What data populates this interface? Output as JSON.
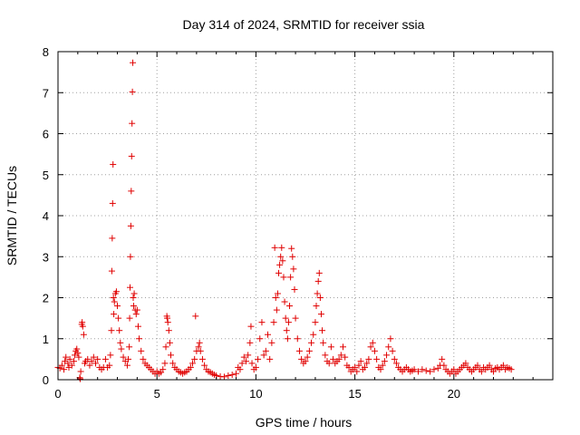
{
  "chart_data": {
    "type": "scatter",
    "title": "Day 314 of 2024, SRMTID for receiver ssia",
    "xlabel": "GPS time / hours",
    "ylabel": "SRMTID / TECUs",
    "xlim": [
      0,
      25
    ],
    "ylim": [
      0,
      8
    ],
    "xticks": [
      0,
      5,
      10,
      15,
      20
    ],
    "yticks": [
      0,
      1,
      2,
      3,
      4,
      5,
      6,
      7,
      8
    ],
    "grid": true,
    "marker": "plus",
    "color": "#e00000",
    "points": [
      [
        0.0,
        0.3
      ],
      [
        0.1,
        0.28
      ],
      [
        0.2,
        0.35
      ],
      [
        0.3,
        0.25
      ],
      [
        0.35,
        0.45
      ],
      [
        0.4,
        0.55
      ],
      [
        0.5,
        0.4
      ],
      [
        0.55,
        0.3
      ],
      [
        0.6,
        0.5
      ],
      [
        0.7,
        0.35
      ],
      [
        0.8,
        0.45
      ],
      [
        0.85,
        0.6
      ],
      [
        0.9,
        0.7
      ],
      [
        0.95,
        0.75
      ],
      [
        1.0,
        0.65
      ],
      [
        1.05,
        0.55
      ],
      [
        1.1,
        0.05
      ],
      [
        1.12,
        0.02
      ],
      [
        1.15,
        0.2
      ],
      [
        1.2,
        1.35
      ],
      [
        1.22,
        1.4
      ],
      [
        1.25,
        1.3
      ],
      [
        1.3,
        1.1
      ],
      [
        1.35,
        0.4
      ],
      [
        1.4,
        0.45
      ],
      [
        1.5,
        0.5
      ],
      [
        1.6,
        0.35
      ],
      [
        1.7,
        0.45
      ],
      [
        1.8,
        0.55
      ],
      [
        1.9,
        0.4
      ],
      [
        2.0,
        0.5
      ],
      [
        2.1,
        0.3
      ],
      [
        2.2,
        0.25
      ],
      [
        2.3,
        0.3
      ],
      [
        2.4,
        0.5
      ],
      [
        2.5,
        0.3
      ],
      [
        2.6,
        0.35
      ],
      [
        2.65,
        0.6
      ],
      [
        2.7,
        1.2
      ],
      [
        2.72,
        2.65
      ],
      [
        2.74,
        3.45
      ],
      [
        2.76,
        4.3
      ],
      [
        2.78,
        5.25
      ],
      [
        2.8,
        2.0
      ],
      [
        2.82,
        1.6
      ],
      [
        2.85,
        1.9
      ],
      [
        2.9,
        2.1
      ],
      [
        2.95,
        2.15
      ],
      [
        3.0,
        1.8
      ],
      [
        3.05,
        1.5
      ],
      [
        3.1,
        1.2
      ],
      [
        3.15,
        0.9
      ],
      [
        3.2,
        0.75
      ],
      [
        3.3,
        0.55
      ],
      [
        3.4,
        0.45
      ],
      [
        3.5,
        0.35
      ],
      [
        3.55,
        0.5
      ],
      [
        3.6,
        0.8
      ],
      [
        3.62,
        1.5
      ],
      [
        3.64,
        2.25
      ],
      [
        3.66,
        3.0
      ],
      [
        3.68,
        3.75
      ],
      [
        3.7,
        4.6
      ],
      [
        3.72,
        5.45
      ],
      [
        3.74,
        6.25
      ],
      [
        3.76,
        7.02
      ],
      [
        3.78,
        7.73
      ],
      [
        3.8,
        2.0
      ],
      [
        3.82,
        1.8
      ],
      [
        3.85,
        2.1
      ],
      [
        3.9,
        1.7
      ],
      [
        3.95,
        1.6
      ],
      [
        4.0,
        1.7
      ],
      [
        4.05,
        1.3
      ],
      [
        4.1,
        1.0
      ],
      [
        4.2,
        0.7
      ],
      [
        4.3,
        0.5
      ],
      [
        4.4,
        0.4
      ],
      [
        4.5,
        0.35
      ],
      [
        4.6,
        0.3
      ],
      [
        4.7,
        0.25
      ],
      [
        4.8,
        0.2
      ],
      [
        4.9,
        0.15
      ],
      [
        5.0,
        0.2
      ],
      [
        5.1,
        0.15
      ],
      [
        5.2,
        0.18
      ],
      [
        5.3,
        0.25
      ],
      [
        5.4,
        0.4
      ],
      [
        5.45,
        0.8
      ],
      [
        5.5,
        1.55
      ],
      [
        5.52,
        1.5
      ],
      [
        5.55,
        1.4
      ],
      [
        5.6,
        1.2
      ],
      [
        5.65,
        0.9
      ],
      [
        5.7,
        0.6
      ],
      [
        5.8,
        0.4
      ],
      [
        5.9,
        0.3
      ],
      [
        6.0,
        0.25
      ],
      [
        6.1,
        0.2
      ],
      [
        6.2,
        0.18
      ],
      [
        6.3,
        0.15
      ],
      [
        6.4,
        0.18
      ],
      [
        6.5,
        0.2
      ],
      [
        6.6,
        0.25
      ],
      [
        6.7,
        0.3
      ],
      [
        6.8,
        0.4
      ],
      [
        6.9,
        0.5
      ],
      [
        6.95,
        1.55
      ],
      [
        7.0,
        0.7
      ],
      [
        7.1,
        0.8
      ],
      [
        7.15,
        0.9
      ],
      [
        7.2,
        0.7
      ],
      [
        7.3,
        0.5
      ],
      [
        7.4,
        0.35
      ],
      [
        7.5,
        0.25
      ],
      [
        7.6,
        0.2
      ],
      [
        7.7,
        0.18
      ],
      [
        7.8,
        0.15
      ],
      [
        7.9,
        0.12
      ],
      [
        8.0,
        0.1
      ],
      [
        8.2,
        0.08
      ],
      [
        8.4,
        0.07
      ],
      [
        8.6,
        0.1
      ],
      [
        8.8,
        0.12
      ],
      [
        9.0,
        0.15
      ],
      [
        9.1,
        0.3
      ],
      [
        9.2,
        0.25
      ],
      [
        9.3,
        0.4
      ],
      [
        9.4,
        0.55
      ],
      [
        9.5,
        0.45
      ],
      [
        9.6,
        0.6
      ],
      [
        9.7,
        0.9
      ],
      [
        9.75,
        1.3
      ],
      [
        9.8,
        0.4
      ],
      [
        9.9,
        0.25
      ],
      [
        10.0,
        0.3
      ],
      [
        10.1,
        0.5
      ],
      [
        10.2,
        1.0
      ],
      [
        10.3,
        1.4
      ],
      [
        10.4,
        0.6
      ],
      [
        10.5,
        0.7
      ],
      [
        10.6,
        1.1
      ],
      [
        10.7,
        0.5
      ],
      [
        10.8,
        0.9
      ],
      [
        10.9,
        1.4
      ],
      [
        10.95,
        3.22
      ],
      [
        11.0,
        2.0
      ],
      [
        11.05,
        1.7
      ],
      [
        11.1,
        2.1
      ],
      [
        11.15,
        2.6
      ],
      [
        11.2,
        2.8
      ],
      [
        11.25,
        3.0
      ],
      [
        11.3,
        3.22
      ],
      [
        11.35,
        2.9
      ],
      [
        11.4,
        2.5
      ],
      [
        11.45,
        1.9
      ],
      [
        11.5,
        1.5
      ],
      [
        11.55,
        1.2
      ],
      [
        11.6,
        1.0
      ],
      [
        11.65,
        1.4
      ],
      [
        11.7,
        1.8
      ],
      [
        11.75,
        2.5
      ],
      [
        11.8,
        3.2
      ],
      [
        11.85,
        3.0
      ],
      [
        11.9,
        2.7
      ],
      [
        11.95,
        2.2
      ],
      [
        12.0,
        1.5
      ],
      [
        12.1,
        1.0
      ],
      [
        12.2,
        0.7
      ],
      [
        12.3,
        0.5
      ],
      [
        12.4,
        0.4
      ],
      [
        12.5,
        0.45
      ],
      [
        12.6,
        0.55
      ],
      [
        12.7,
        0.7
      ],
      [
        12.8,
        0.9
      ],
      [
        12.9,
        1.1
      ],
      [
        13.0,
        1.4
      ],
      [
        13.05,
        1.8
      ],
      [
        13.1,
        2.1
      ],
      [
        13.15,
        2.4
      ],
      [
        13.2,
        2.6
      ],
      [
        13.25,
        2.0
      ],
      [
        13.3,
        1.6
      ],
      [
        13.35,
        1.2
      ],
      [
        13.4,
        0.9
      ],
      [
        13.5,
        0.6
      ],
      [
        13.6,
        0.45
      ],
      [
        13.7,
        0.4
      ],
      [
        13.8,
        0.8
      ],
      [
        13.9,
        0.5
      ],
      [
        14.0,
        0.4
      ],
      [
        14.1,
        0.45
      ],
      [
        14.2,
        0.5
      ],
      [
        14.3,
        0.6
      ],
      [
        14.4,
        0.8
      ],
      [
        14.5,
        0.55
      ],
      [
        14.6,
        0.35
      ],
      [
        14.7,
        0.3
      ],
      [
        14.8,
        0.2
      ],
      [
        14.9,
        0.25
      ],
      [
        15.0,
        0.3
      ],
      [
        15.1,
        0.2
      ],
      [
        15.2,
        0.35
      ],
      [
        15.3,
        0.45
      ],
      [
        15.4,
        0.25
      ],
      [
        15.5,
        0.3
      ],
      [
        15.6,
        0.4
      ],
      [
        15.7,
        0.5
      ],
      [
        15.8,
        0.8
      ],
      [
        15.9,
        0.9
      ],
      [
        16.0,
        0.7
      ],
      [
        16.1,
        0.5
      ],
      [
        16.2,
        0.3
      ],
      [
        16.3,
        0.25
      ],
      [
        16.4,
        0.35
      ],
      [
        16.5,
        0.45
      ],
      [
        16.6,
        0.6
      ],
      [
        16.7,
        0.8
      ],
      [
        16.8,
        1.0
      ],
      [
        16.9,
        0.7
      ],
      [
        17.0,
        0.5
      ],
      [
        17.1,
        0.4
      ],
      [
        17.2,
        0.3
      ],
      [
        17.3,
        0.25
      ],
      [
        17.4,
        0.2
      ],
      [
        17.5,
        0.25
      ],
      [
        17.6,
        0.3
      ],
      [
        17.7,
        0.25
      ],
      [
        17.8,
        0.2
      ],
      [
        17.9,
        0.22
      ],
      [
        18.0,
        0.25
      ],
      [
        18.2,
        0.2
      ],
      [
        18.4,
        0.25
      ],
      [
        18.6,
        0.22
      ],
      [
        18.8,
        0.2
      ],
      [
        19.0,
        0.25
      ],
      [
        19.2,
        0.28
      ],
      [
        19.3,
        0.35
      ],
      [
        19.4,
        0.5
      ],
      [
        19.5,
        0.35
      ],
      [
        19.6,
        0.25
      ],
      [
        19.7,
        0.2
      ],
      [
        19.8,
        0.15
      ],
      [
        19.9,
        0.2
      ],
      [
        20.0,
        0.25
      ],
      [
        20.1,
        0.15
      ],
      [
        20.2,
        0.2
      ],
      [
        20.3,
        0.25
      ],
      [
        20.4,
        0.3
      ],
      [
        20.5,
        0.35
      ],
      [
        20.6,
        0.4
      ],
      [
        20.7,
        0.3
      ],
      [
        20.8,
        0.25
      ],
      [
        20.9,
        0.2
      ],
      [
        21.0,
        0.25
      ],
      [
        21.1,
        0.3
      ],
      [
        21.2,
        0.35
      ],
      [
        21.3,
        0.25
      ],
      [
        21.4,
        0.2
      ],
      [
        21.5,
        0.3
      ],
      [
        21.6,
        0.25
      ],
      [
        21.7,
        0.3
      ],
      [
        21.8,
        0.35
      ],
      [
        21.9,
        0.25
      ],
      [
        22.0,
        0.2
      ],
      [
        22.1,
        0.28
      ],
      [
        22.2,
        0.3
      ],
      [
        22.3,
        0.25
      ],
      [
        22.4,
        0.3
      ],
      [
        22.5,
        0.35
      ],
      [
        22.6,
        0.25
      ],
      [
        22.7,
        0.3
      ],
      [
        22.8,
        0.28
      ],
      [
        22.9,
        0.25
      ]
    ]
  }
}
